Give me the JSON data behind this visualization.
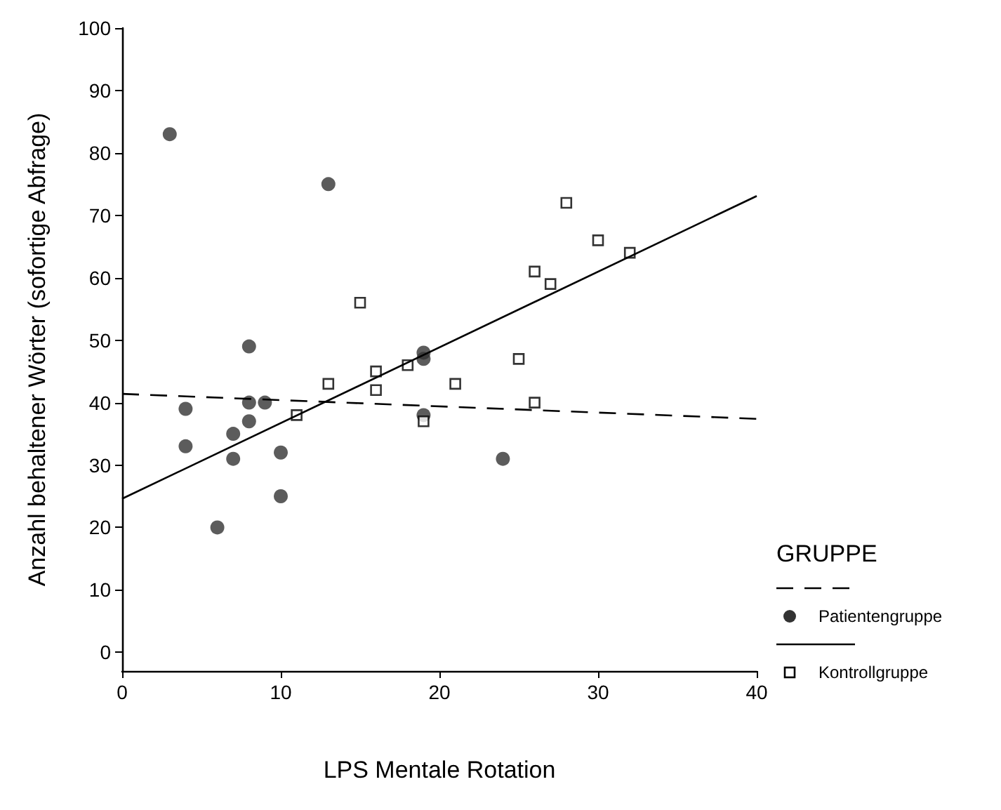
{
  "chart_data": {
    "type": "scatter",
    "xlabel": "LPS Mentale Rotation",
    "ylabel": "Anzahl behaltener Wörter (sofortige Abfrage)",
    "legend_title": "GRUPPE",
    "legend": "right",
    "grid": false,
    "xlim": [
      0,
      40
    ],
    "xticks": [
      0,
      10,
      20,
      30,
      40
    ],
    "ylim": [
      -3,
      100
    ],
    "yticks": [
      0,
      10,
      20,
      30,
      40,
      50,
      60,
      70,
      80,
      90,
      100
    ],
    "series": [
      {
        "type": "line",
        "color": "#000000",
        "line_style": "dashed",
        "marker": "none",
        "x": [
          0,
          40
        ],
        "values": [
          41.4,
          37.4
        ]
      },
      {
        "name": "Patientengruppe",
        "color": "#333333",
        "marker": "circle",
        "x": [
          3,
          13,
          8,
          4,
          8,
          9,
          8,
          7,
          4,
          7,
          10,
          10,
          6,
          19,
          19,
          19,
          24
        ],
        "values": [
          83,
          75,
          49,
          39,
          40,
          40,
          37,
          35,
          33,
          31,
          32,
          25,
          20,
          48,
          47,
          38,
          31
        ]
      },
      {
        "type": "line",
        "color": "#000000",
        "line_style": "solid",
        "marker": "none",
        "x": [
          0,
          40
        ],
        "values": [
          24.6,
          73.1
        ]
      },
      {
        "name": "Kontrollgruppe",
        "color": "#000000",
        "marker": "square",
        "x": [
          15,
          16,
          16,
          13,
          11,
          18,
          19,
          21,
          25,
          26,
          26,
          27,
          28,
          30,
          32
        ],
        "values": [
          56,
          45,
          42,
          43,
          38,
          46,
          37,
          43,
          47,
          40,
          61,
          59,
          72,
          66,
          64
        ]
      }
    ]
  }
}
